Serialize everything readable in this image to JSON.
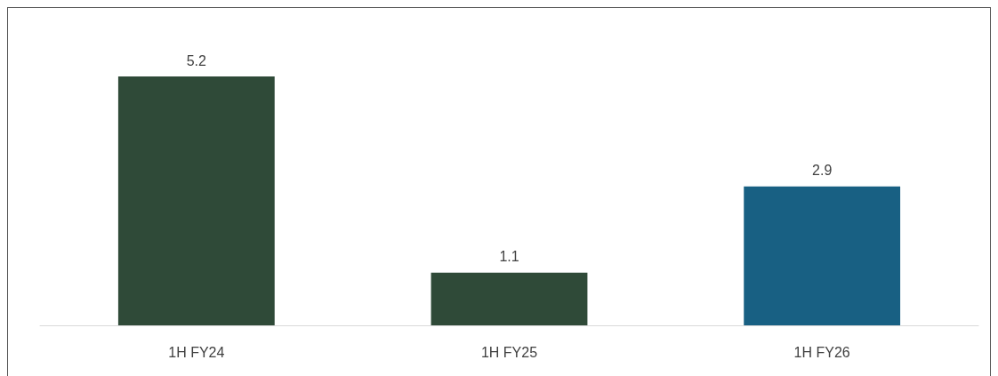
{
  "chart_data": {
    "type": "bar",
    "categories": [
      "1H FY24",
      "1H FY25",
      "1H FY26"
    ],
    "values": [
      5.2,
      1.1,
      2.9
    ],
    "colors": [
      "#2f4a38",
      "#2f4a38",
      "#186083"
    ],
    "data_labels": true
  }
}
